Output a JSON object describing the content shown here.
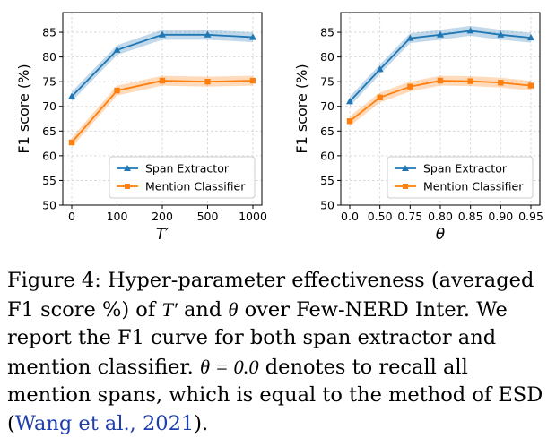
{
  "chart_data": [
    {
      "type": "line",
      "xlabel": "T′",
      "ylabel": "F1 score (%)",
      "categories": [
        "0",
        "100",
        "200",
        "500",
        "1000"
      ],
      "ylim": [
        50,
        89
      ],
      "yticks": [
        50,
        55,
        60,
        65,
        70,
        75,
        80,
        85
      ],
      "grid": true,
      "legend": "lower-right",
      "series": [
        {
          "name": "Span Extractor",
          "color": "#1f77b4",
          "marker": "triangle",
          "values": [
            72.0,
            81.4,
            84.5,
            84.5,
            84.0
          ],
          "band": 1.0
        },
        {
          "name": "Mention Classifier",
          "color": "#ff7f0e",
          "marker": "square",
          "values": [
            62.7,
            73.2,
            75.2,
            75.0,
            75.2
          ],
          "band": 1.0
        }
      ]
    },
    {
      "type": "line",
      "xlabel": "θ",
      "ylabel": "F1 score (%)",
      "categories": [
        "0.0",
        "0.50",
        "0.75",
        "0.80",
        "0.85",
        "0.90",
        "0.95"
      ],
      "ylim": [
        50,
        89
      ],
      "yticks": [
        50,
        55,
        60,
        65,
        70,
        75,
        80,
        85
      ],
      "grid": true,
      "legend": "lower-right",
      "series": [
        {
          "name": "Span Extractor",
          "color": "#1f77b4",
          "marker": "triangle",
          "values": [
            71.0,
            77.5,
            83.8,
            84.5,
            85.3,
            84.5,
            83.9
          ],
          "band": 1.0
        },
        {
          "name": "Mention Classifier",
          "color": "#ff7f0e",
          "marker": "square",
          "values": [
            67.0,
            71.8,
            74.0,
            75.2,
            75.1,
            74.8,
            74.2
          ],
          "band": 1.0
        }
      ]
    }
  ],
  "caption": {
    "figure_label": "Figure 4:",
    "text_1": "Hyper-parameter effectiveness (averaged F1 score %) of",
    "t_prime": "T′",
    "text_2": "and",
    "theta": "θ",
    "text_3": "over Few-NERD Inter. We report the F1 curve for both span extractor and mention classifier.",
    "theta_eq": "θ = 0.0",
    "text_4": "denotes to recall all mention spans, which is equal to the method of ESD (",
    "citation": "Wang et al., 2021",
    "text_5": ")."
  }
}
